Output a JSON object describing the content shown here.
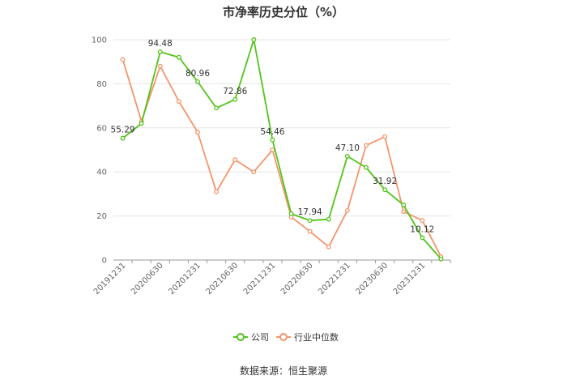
{
  "title": "市净率历史分位（%）",
  "source": "数据来源：恒生聚源",
  "chart_data": {
    "type": "line",
    "title": "市净率历史分位（%）",
    "x": [
      "20191231",
      "20200331",
      "20200630",
      "20200930",
      "20201231",
      "20210331",
      "20210630",
      "20210930",
      "20211231",
      "20220331",
      "20220630",
      "20220930",
      "20221231",
      "20230331",
      "20230630",
      "20230930",
      "20231231",
      "20240331"
    ],
    "x_tick_labels": [
      "20191231",
      "20200630",
      "20201231",
      "20210630",
      "20211231",
      "20220630",
      "20221231",
      "20230630",
      "20231231"
    ],
    "y_ticks": [
      0,
      20,
      40,
      60,
      80,
      100
    ],
    "ylim": [
      0,
      100
    ],
    "grid": true,
    "legend_position": "bottom",
    "series": [
      {
        "name": "公司",
        "color": "#52c41a",
        "values": [
          55.29,
          62,
          94.48,
          92,
          80.96,
          69,
          72.86,
          100,
          54.46,
          21,
          17.94,
          18.5,
          47.1,
          42,
          31.92,
          25,
          10.12,
          0.5
        ],
        "labels": [
          "55.29",
          "",
          "94.48",
          "",
          "80.96",
          "",
          "72.86",
          "",
          "54.46",
          "",
          "17.94",
          "",
          "47.10",
          "",
          "31.92",
          "",
          "10.12",
          ""
        ]
      },
      {
        "name": "行业中位数",
        "color": "#f4956a",
        "values": [
          91,
          63,
          88,
          72,
          58,
          31,
          45.5,
          40,
          50,
          19.5,
          13,
          6,
          22.5,
          52,
          56,
          22,
          18,
          1.5
        ]
      }
    ]
  }
}
